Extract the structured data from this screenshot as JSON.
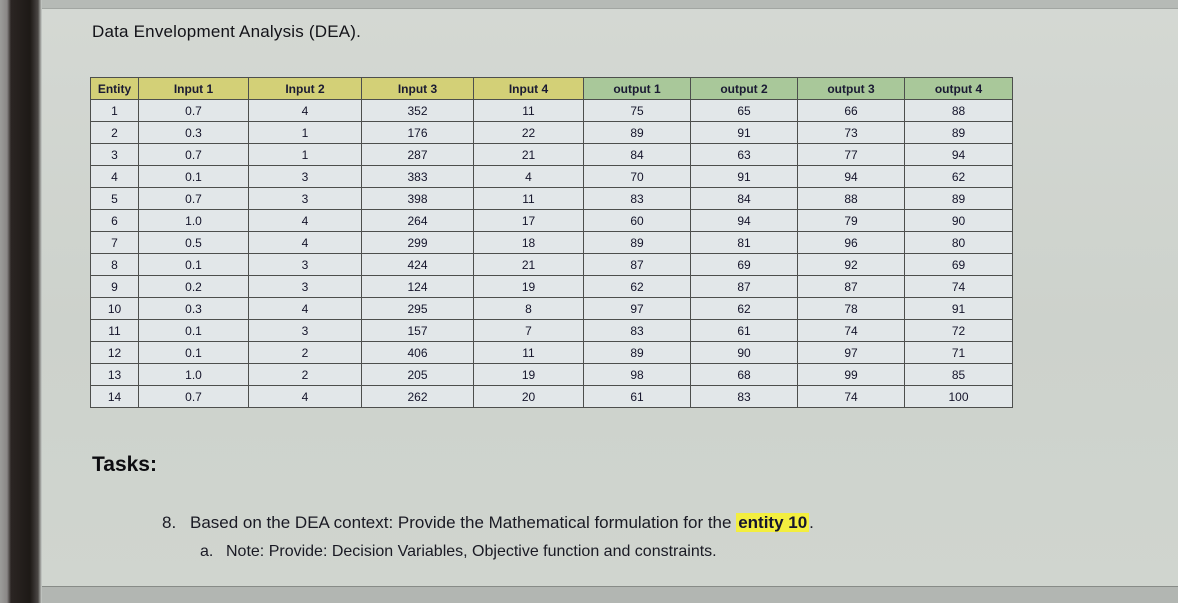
{
  "title": "Data Envelopment Analysis (DEA).",
  "table": {
    "headers": [
      {
        "label": "Entity",
        "group": "input"
      },
      {
        "label": "Input 1",
        "group": "input"
      },
      {
        "label": "Input 2",
        "group": "input"
      },
      {
        "label": "Input 3",
        "group": "input"
      },
      {
        "label": "Input 4",
        "group": "input"
      },
      {
        "label": "output 1",
        "group": "output"
      },
      {
        "label": "output 2",
        "group": "output"
      },
      {
        "label": "output 3",
        "group": "output"
      },
      {
        "label": "output 4",
        "group": "output"
      }
    ],
    "rows": [
      [
        "1",
        "0.7",
        "4",
        "352",
        "11",
        "75",
        "65",
        "66",
        "88"
      ],
      [
        "2",
        "0.3",
        "1",
        "176",
        "22",
        "89",
        "91",
        "73",
        "89"
      ],
      [
        "3",
        "0.7",
        "1",
        "287",
        "21",
        "84",
        "63",
        "77",
        "94"
      ],
      [
        "4",
        "0.1",
        "3",
        "383",
        "4",
        "70",
        "91",
        "94",
        "62"
      ],
      [
        "5",
        "0.7",
        "3",
        "398",
        "11",
        "83",
        "84",
        "88",
        "89"
      ],
      [
        "6",
        "1.0",
        "4",
        "264",
        "17",
        "60",
        "94",
        "79",
        "90"
      ],
      [
        "7",
        "0.5",
        "4",
        "299",
        "18",
        "89",
        "81",
        "96",
        "80"
      ],
      [
        "8",
        "0.1",
        "3",
        "424",
        "21",
        "87",
        "69",
        "92",
        "69"
      ],
      [
        "9",
        "0.2",
        "3",
        "124",
        "19",
        "62",
        "87",
        "87",
        "74"
      ],
      [
        "10",
        "0.3",
        "4",
        "295",
        "8",
        "97",
        "62",
        "78",
        "91"
      ],
      [
        "11",
        "0.1",
        "3",
        "157",
        "7",
        "83",
        "61",
        "74",
        "72"
      ],
      [
        "12",
        "0.1",
        "2",
        "406",
        "11",
        "89",
        "90",
        "97",
        "71"
      ],
      [
        "13",
        "1.0",
        "2",
        "205",
        "19",
        "98",
        "68",
        "99",
        "85"
      ],
      [
        "14",
        "0.7",
        "4",
        "262",
        "20",
        "61",
        "83",
        "74",
        "100"
      ]
    ]
  },
  "tasks": {
    "heading": "Tasks:",
    "item8": {
      "number": "8.",
      "text_before": "Based on the DEA context: Provide the Mathematical formulation for the ",
      "highlight": "entity 10",
      "text_after": ".",
      "sub_label": "a.",
      "sub_text": "Note: Provide: Decision Variables, Objective function and constraints."
    }
  },
  "colors": {
    "input_header_bg": "#d3d077",
    "output_header_bg": "#a9c89a",
    "highlight_bg": "#f3ee3f"
  }
}
